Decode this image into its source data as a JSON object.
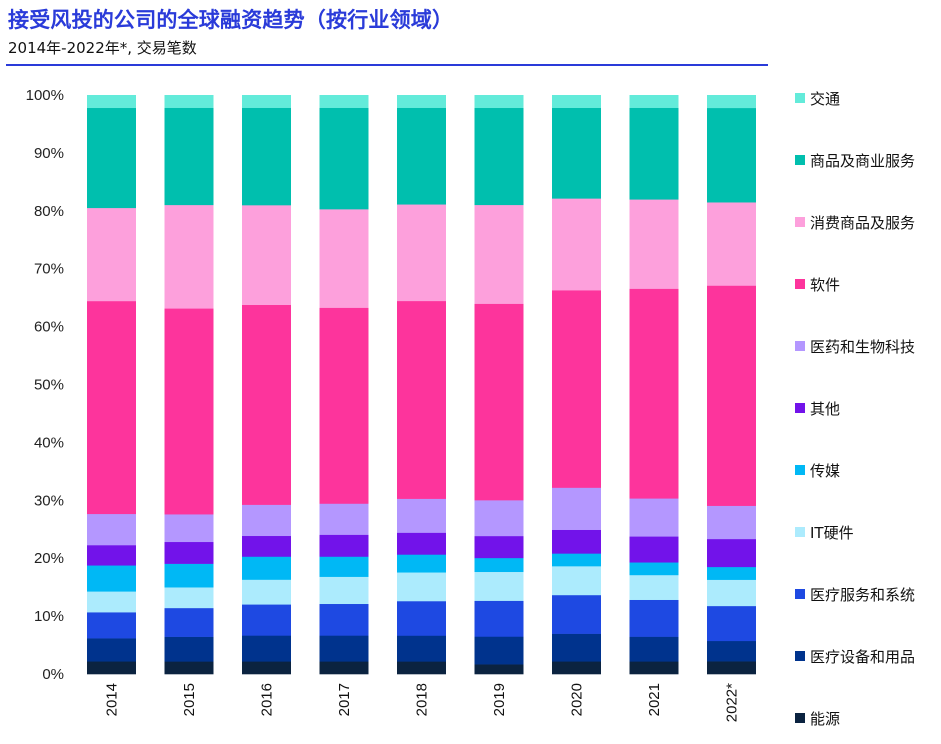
{
  "header": {
    "title": "接受风投的公司的全球融资趋势（按行业领域）",
    "subtitle": "2014年-2022年*, 交易笔数"
  },
  "chart_data": {
    "type": "bar",
    "stacked": true,
    "normalized": true,
    "title": "接受风投的公司的全球融资趋势（按行业领域）",
    "subtitle": "2014年-2022年*, 交易笔数",
    "xlabel": "",
    "ylabel": "",
    "ylim": [
      0,
      100
    ],
    "yticks": [
      "0%",
      "10%",
      "20%",
      "30%",
      "40%",
      "50%",
      "60%",
      "70%",
      "80%",
      "90%",
      "100%"
    ],
    "grid": false,
    "legend_position": "right",
    "categories": [
      "2014",
      "2015",
      "2016",
      "2017",
      "2018",
      "2019",
      "2020",
      "2021",
      "2022*"
    ],
    "series": [
      {
        "name": "能源",
        "color": "#0b2340",
        "values": [
          2.2,
          2.2,
          2.2,
          2.2,
          2.2,
          1.7,
          2.2,
          2.2,
          2.2
        ]
      },
      {
        "name": "医疗设备和用品",
        "color": "#00338d",
        "values": [
          4.0,
          4.3,
          4.5,
          4.5,
          4.5,
          4.8,
          4.8,
          4.3,
          3.5
        ]
      },
      {
        "name": "医疗服务和系统",
        "color": "#1e49e2",
        "values": [
          4.5,
          5.0,
          5.4,
          5.5,
          6.0,
          6.2,
          6.7,
          6.4,
          6.0
        ]
      },
      {
        "name": "IT硬件",
        "color": "#acebfd",
        "values": [
          3.6,
          3.6,
          4.3,
          4.7,
          5.0,
          5.0,
          5.0,
          4.3,
          4.5
        ]
      },
      {
        "name": "传媒",
        "color": "#00b8f5",
        "values": [
          4.5,
          4.1,
          4.0,
          3.5,
          3.1,
          2.4,
          2.2,
          2.2,
          2.2
        ]
      },
      {
        "name": "其他",
        "color": "#7213ea",
        "values": [
          3.5,
          3.8,
          3.6,
          3.8,
          3.8,
          3.8,
          4.1,
          4.5,
          4.8
        ]
      },
      {
        "name": "医药和生物科技",
        "color": "#b497ff",
        "values": [
          5.4,
          4.8,
          5.4,
          5.4,
          5.9,
          6.2,
          7.3,
          6.6,
          5.7
        ]
      },
      {
        "name": "软件",
        "color": "#fd349c",
        "values": [
          36.8,
          35.8,
          34.7,
          34.0,
          34.4,
          34.0,
          34.2,
          36.4,
          37.8
        ]
      },
      {
        "name": "消费商品及服务",
        "color": "#fda0dc",
        "values": [
          16.1,
          18.0,
          17.3,
          17.1,
          16.8,
          17.1,
          15.9,
          15.5,
          14.3
        ]
      },
      {
        "name": "商品及商业服务",
        "color": "#00bfae",
        "values": [
          17.3,
          16.9,
          16.9,
          17.6,
          16.8,
          16.8,
          15.7,
          15.9,
          16.2
        ]
      },
      {
        "name": "交通",
        "color": "#63ebda",
        "values": [
          2.2,
          2.2,
          2.2,
          2.2,
          2.2,
          2.2,
          2.2,
          2.2,
          2.2
        ]
      }
    ],
    "legend_order": [
      "交通",
      "商品及商业服务",
      "消费商品及服务",
      "软件",
      "医药和生物科技",
      "其他",
      "传媒",
      "IT硬件",
      "医疗服务和系统",
      "医疗设备和用品",
      "能源"
    ]
  }
}
